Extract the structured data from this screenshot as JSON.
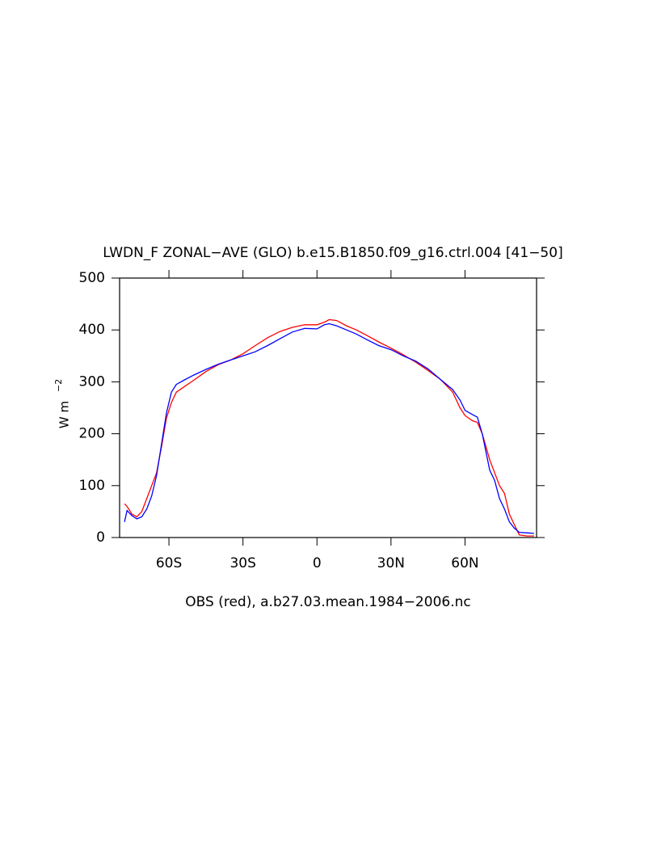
{
  "chart_data": {
    "type": "line",
    "title": "LWDN_F ZONAL−AVE (GLO) b.e15.B1850.f09_g16.ctrl.004 [41−50]",
    "ylabel": "W m",
    "ylabel_exponent": "−2",
    "xlabel": "OBS (red), a.b27.03.mean.1984−2006.nc",
    "x": [
      -78,
      -77,
      -75,
      -73,
      -71,
      -69,
      -67,
      -65,
      -63,
      -61,
      -59,
      -57,
      -54,
      -50,
      -45,
      -40,
      -35,
      -30,
      -25,
      -20,
      -15,
      -10,
      -5,
      0,
      3,
      5,
      8,
      12,
      16,
      20,
      25,
      30,
      35,
      40,
      45,
      50,
      55,
      58,
      60,
      63,
      65,
      67,
      70,
      72,
      74,
      76,
      78,
      80,
      82,
      85,
      88
    ],
    "series": [
      {
        "color": "#0000ff",
        "values": [
          30,
          52,
          42,
          36,
          40,
          55,
          80,
          120,
          180,
          240,
          280,
          295,
          303,
          313,
          324,
          334,
          342,
          350,
          358,
          370,
          383,
          396,
          403,
          402,
          410,
          412,
          408,
          400,
          392,
          382,
          370,
          362,
          350,
          340,
          325,
          305,
          285,
          265,
          245,
          237,
          232,
          200,
          130,
          110,
          75,
          55,
          30,
          18,
          10,
          9,
          8
        ]
      },
      {
        "color": "#ff0000",
        "values": [
          65,
          60,
          45,
          40,
          50,
          75,
          100,
          125,
          175,
          230,
          260,
          280,
          290,
          303,
          320,
          333,
          342,
          354,
          370,
          385,
          397,
          405,
          410,
          410,
          415,
          420,
          418,
          408,
          400,
          390,
          377,
          365,
          352,
          338,
          322,
          305,
          280,
          250,
          235,
          225,
          222,
          200,
          150,
          125,
          100,
          85,
          45,
          25,
          5,
          3,
          3
        ]
      }
    ],
    "xlim": [
      -80,
      89
    ],
    "xticks": [
      {
        "value": -60,
        "label": "60S"
      },
      {
        "value": -30,
        "label": "30S"
      },
      0,
      {
        "value": 30,
        "label": "30N"
      },
      {
        "value": 60,
        "label": "60N"
      }
    ],
    "ylim": [
      0,
      500
    ],
    "yticks": [
      0,
      100,
      200,
      300,
      400,
      500
    ]
  }
}
